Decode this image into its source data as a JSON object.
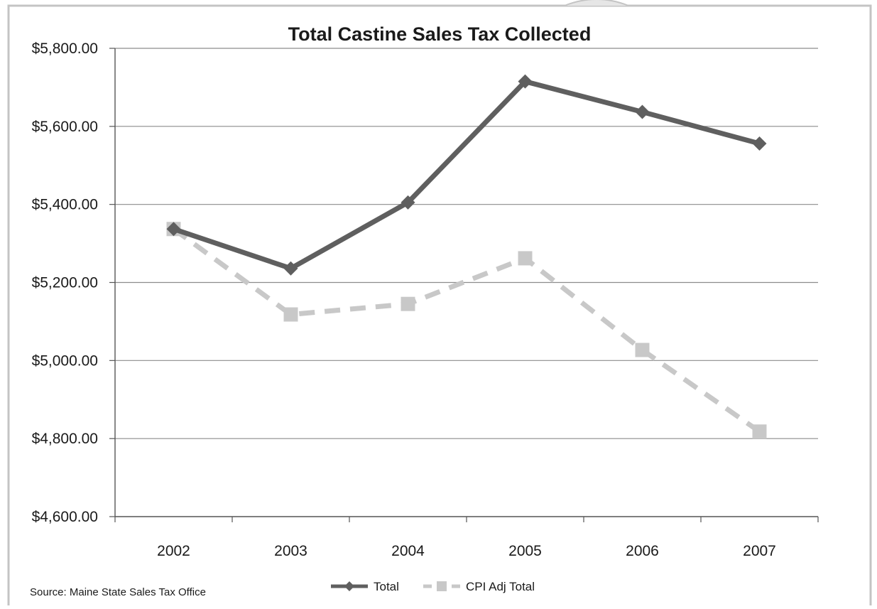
{
  "chart_data": {
    "type": "line",
    "title": "Total Castine Sales Tax Collected",
    "categories": [
      "2002",
      "2003",
      "2004",
      "2005",
      "2006",
      "2007"
    ],
    "ylim": [
      4600,
      5800
    ],
    "yticks": [
      4600,
      4800,
      5000,
      5200,
      5400,
      5600,
      5800
    ],
    "ytick_labels": [
      "$4,600.00",
      "$4,800.00",
      "$5,000.00",
      "$5,200.00",
      "$5,400.00",
      "$5,600.00",
      "$5,800.00"
    ],
    "grid": true,
    "legend_position": "bottom",
    "series": [
      {
        "name": "Total",
        "values": [
          5337,
          5236,
          5405,
          5715,
          5637,
          5556
        ],
        "color": "#5f5f5f",
        "marker": "diamond",
        "line_style": "solid"
      },
      {
        "name": "CPI Adj Total",
        "values": [
          5337,
          5118,
          5145,
          5262,
          5027,
          4818
        ],
        "color": "#c8c8c8",
        "marker": "square",
        "line_style": "dashed"
      }
    ],
    "annotation": "Source: Maine State Sales Tax Office"
  }
}
